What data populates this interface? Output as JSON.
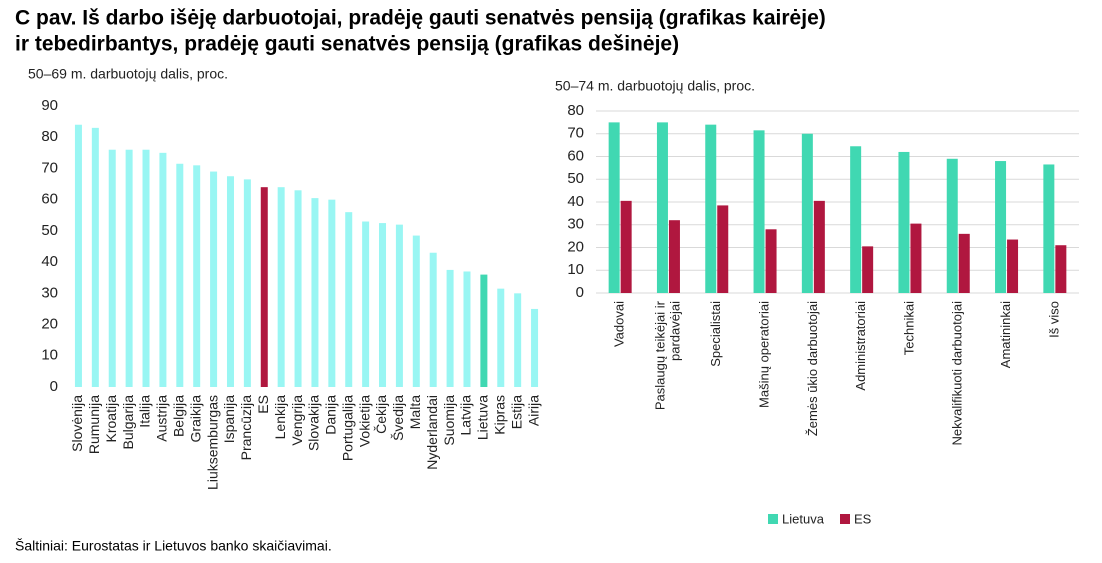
{
  "header": {
    "title_lines": [
      "C pav. Iš darbo išėję darbuotojai, pradėję gauti senatvės pensiją (grafikas kairėje)",
      "ir tebedirbantys, pradėję gauti senatvės pensiją (grafikas dešinėje)"
    ]
  },
  "source": "Šaltiniai: Eurostatas ir Lietuvos banko skaičiavimai.",
  "chart_data": [
    {
      "type": "bar",
      "y_label": "50–69 m. darbuotojų dalis, proc.",
      "categories": [
        "Slovėnija",
        "Rumunija",
        "Kroatija",
        "Bulgarija",
        "Italija",
        "Austrija",
        "Belgija",
        "Graikija",
        "Liuksemburgas",
        "Ispanija",
        "Prancūzija",
        "ES",
        "Lenkija",
        "Vengrija",
        "Slovakija",
        "Danija",
        "Portugalija",
        "Vokietija",
        "Čekija",
        "Švedija",
        "Malta",
        "Nyderlandai",
        "Suomija",
        "Latvija",
        "Lietuva",
        "Kipras",
        "Estija",
        "Airija"
      ],
      "values": [
        84,
        83,
        76,
        76,
        76,
        75,
        71.5,
        71,
        69,
        67.5,
        66.5,
        64,
        64,
        63,
        60.5,
        60,
        56,
        53,
        52.5,
        52,
        48.5,
        43,
        37.5,
        37,
        36,
        31.5,
        30,
        25
      ],
      "colors": [
        "#99f6f3",
        "#99f6f3",
        "#99f6f3",
        "#99f6f3",
        "#99f6f3",
        "#99f6f3",
        "#99f6f3",
        "#99f6f3",
        "#99f6f3",
        "#99f6f3",
        "#99f6f3",
        "#b0173f",
        "#99f6f3",
        "#99f6f3",
        "#99f6f3",
        "#99f6f3",
        "#99f6f3",
        "#99f6f3",
        "#99f6f3",
        "#99f6f3",
        "#99f6f3",
        "#99f6f3",
        "#99f6f3",
        "#99f6f3",
        "#40d8b2",
        "#99f6f3",
        "#99f6f3",
        "#99f6f3"
      ],
      "ylim": [
        0,
        90
      ],
      "yticks": [
        0,
        10,
        20,
        30,
        40,
        50,
        60,
        70,
        80,
        90
      ],
      "grid": false
    },
    {
      "type": "grouped-bar",
      "y_label": "50–74 m. darbuotojų dalis, proc.",
      "categories": [
        "Vadovai",
        [
          "Paslaugų teikėjai ir",
          "pardavėjai"
        ],
        "Specialistai",
        "Mašinų operatoriai",
        "Žemės ūkio darbuotojai",
        "Administratoriai",
        "Technikai",
        "Nekvalifikuoti darbuotojai",
        "Amatininkai",
        "Iš viso"
      ],
      "series": [
        {
          "name": "Lietuva",
          "color": "#40d8b2",
          "values": [
            75,
            75,
            74,
            71.5,
            70,
            64.5,
            62,
            59,
            58,
            56.5
          ]
        },
        {
          "name": "ES",
          "color": "#b0173f",
          "values": [
            40.5,
            32,
            38.5,
            28,
            40.5,
            20.5,
            30.5,
            26,
            23.5,
            21
          ]
        }
      ],
      "ylim": [
        0,
        80
      ],
      "yticks": [
        0,
        10,
        20,
        30,
        40,
        50,
        60,
        70,
        80
      ],
      "grid": true,
      "legend": "bottom"
    }
  ]
}
